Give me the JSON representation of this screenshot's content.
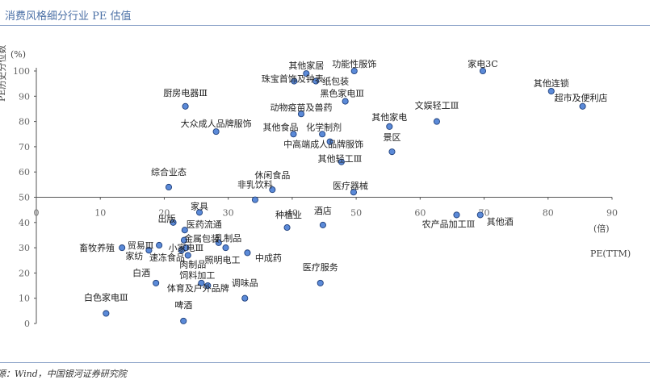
{
  "header": {
    "title": "消费风格细分行业 PE 估值",
    "source": "源：Wind，中国银河证券研究院"
  },
  "colors": {
    "point_fill": "#5b8ad8",
    "point_stroke": "#1f3f7a",
    "axis": "#555555",
    "title": "#4a6fa5"
  },
  "chart_data": {
    "type": "scatter",
    "title": "",
    "xlabel": "PE(TTM)",
    "xunit": "(倍)",
    "ylabel": "PE历史分位数",
    "yunit": "(%)",
    "xlim": [
      0,
      90
    ],
    "ylim": [
      0,
      100
    ],
    "xticks": [
      0,
      10,
      20,
      30,
      40,
      50,
      60,
      70,
      80,
      90
    ],
    "yticks": [
      0,
      10,
      20,
      30,
      40,
      50,
      60,
      70,
      80,
      90,
      100
    ],
    "x_axis_crosses_at_y": 50,
    "grid": false,
    "legend": "none",
    "points": [
      {
        "label": "家电3C",
        "x": 69.8,
        "y": 100
      },
      {
        "label": "功能性服饰",
        "x": 49.7,
        "y": 100
      },
      {
        "label": "其他家居",
        "x": 42.2,
        "y": 99
      },
      {
        "label": "珠宝首饰及钟表",
        "x": 40.3,
        "y": 96
      },
      {
        "label": "纸包装",
        "x": 43.7,
        "y": 96
      },
      {
        "label": "其他连锁",
        "x": 80.5,
        "y": 92
      },
      {
        "label": "超市及便利店",
        "x": 85.4,
        "y": 86
      },
      {
        "label": "黑色家电Ⅲ",
        "x": 48.3,
        "y": 88
      },
      {
        "label": "厨房电器Ⅲ",
        "x": 23.3,
        "y": 86
      },
      {
        "label": "动物疫苗及兽药",
        "x": 41.4,
        "y": 83
      },
      {
        "label": "文娱轻工Ⅲ",
        "x": 62.6,
        "y": 80
      },
      {
        "label": "其他家电",
        "x": 55.2,
        "y": 78
      },
      {
        "label": "大众成人品牌服饰",
        "x": 28.1,
        "y": 76
      },
      {
        "label": "其他食品",
        "x": 40.2,
        "y": 75
      },
      {
        "label": "化学制剂",
        "x": 44.7,
        "y": 75
      },
      {
        "label": "中高端成人品牌服饰",
        "x": 45.9,
        "y": 72
      },
      {
        "label": "景区",
        "x": 55.6,
        "y": 68
      },
      {
        "label": "其他轻工Ⅲ",
        "x": 47.7,
        "y": 64
      },
      {
        "label": "综合业态",
        "x": 20.7,
        "y": 54
      },
      {
        "label": "休闲食品",
        "x": 36.9,
        "y": 53
      },
      {
        "label": "医疗器械",
        "x": 49.6,
        "y": 52
      },
      {
        "label": "非乳饮料",
        "x": 34.2,
        "y": 49
      },
      {
        "label": "家具",
        "x": 25.5,
        "y": 44
      },
      {
        "label": "农产品加工Ⅲ",
        "x": 65.7,
        "y": 43
      },
      {
        "label": "其他酒",
        "x": 69.4,
        "y": 43
      },
      {
        "label": "出版",
        "x": 21.4,
        "y": 40
      },
      {
        "label": "酒店",
        "x": 44.8,
        "y": 39
      },
      {
        "label": "种植业",
        "x": 39.2,
        "y": 38
      },
      {
        "label": "医药流通",
        "x": 23.2,
        "y": 37
      },
      {
        "label": "金属包装",
        "x": 23.1,
        "y": 33
      },
      {
        "label": "贸易Ⅲ",
        "x": 19.2,
        "y": 31
      },
      {
        "label": "乳制品",
        "x": 28.5,
        "y": 32
      },
      {
        "label": "畜牧养殖",
        "x": 13.4,
        "y": 30
      },
      {
        "label": "小家电Ⅲ",
        "x": 23.4,
        "y": 30
      },
      {
        "label": "照明电工",
        "x": 29.6,
        "y": 30
      },
      {
        "label": "家纺",
        "x": 17.6,
        "y": 29
      },
      {
        "label": "速冻食品",
        "x": 22.7,
        "y": 29
      },
      {
        "label": "肉制品",
        "x": 23.7,
        "y": 27
      },
      {
        "label": "中成药",
        "x": 33.0,
        "y": 28
      },
      {
        "label": "医疗服务",
        "x": 44.4,
        "y": 16
      },
      {
        "label": "白酒",
        "x": 18.7,
        "y": 16
      },
      {
        "label": "饲料加工",
        "x": 25.8,
        "y": 16
      },
      {
        "label": "体育及户外品牌",
        "x": 26.8,
        "y": 15
      },
      {
        "label": "调味品",
        "x": 32.6,
        "y": 10
      },
      {
        "label": "白色家电Ⅲ",
        "x": 10.9,
        "y": 4
      },
      {
        "label": "啤酒",
        "x": 23.0,
        "y": 1
      }
    ]
  }
}
